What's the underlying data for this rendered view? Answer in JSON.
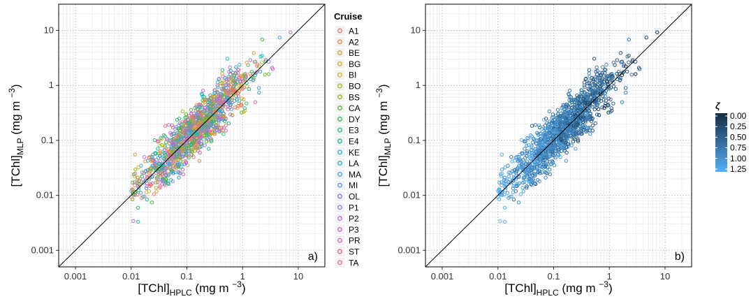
{
  "chart_data": [
    {
      "type": "scatter",
      "panel_label": "a)",
      "xlabel": {
        "main": "[TChl]",
        "sub": "HPLC",
        "unit": "(mg m",
        "sup": "−3",
        "close": ")"
      },
      "ylabel": {
        "main": "[TChl]",
        "sub": "MLP",
        "unit": "(mg m",
        "sup": "−3",
        "close": ")"
      },
      "scale": "log10",
      "xlim": [
        0.0005,
        30
      ],
      "ylim": [
        0.0005,
        30
      ],
      "ticks": [
        0.001,
        0.01,
        0.1,
        1,
        10
      ],
      "tick_labels": [
        "0.001",
        "0.01",
        "0.1",
        "1",
        "10"
      ],
      "grid": true,
      "reference_line": "1:1",
      "legend": {
        "title": "Cruise",
        "placement": "right",
        "entries": [
          "A1",
          "A2",
          "BE",
          "BG",
          "BI",
          "BO",
          "BS",
          "CA",
          "DY",
          "E3",
          "E4",
          "KE",
          "LA",
          "MA",
          "MI",
          "OL",
          "P1",
          "P2",
          "P3",
          "PR",
          "ST",
          "TA"
        ],
        "colors": [
          "#F8766D",
          "#F0844A",
          "#E99A3C",
          "#DCA629",
          "#C9B41A",
          "#AAB91A",
          "#7FB81E",
          "#4FB72C",
          "#2DB84F",
          "#20BA76",
          "#1DBB9B",
          "#1FB7BE",
          "#27AEDB",
          "#3FA0EC",
          "#5C8EF2",
          "#7B7CF2",
          "#977AEE",
          "#B06EE4",
          "#C965D5",
          "#DC5FBF",
          "#EA5EA4",
          "#F46A86"
        ]
      }
    },
    {
      "type": "scatter",
      "panel_label": "b)",
      "xlabel": {
        "main": "[TChl]",
        "sub": "HPLC",
        "unit": "(mg m",
        "sup": "−3",
        "close": ")"
      },
      "ylabel": {
        "main": "[TChl]",
        "sub": "MLP",
        "unit": "(mg m",
        "sup": "−3",
        "close": ")"
      },
      "scale": "log10",
      "xlim": [
        0.0005,
        30
      ],
      "ylim": [
        0.0005,
        30
      ],
      "ticks": [
        0.001,
        0.01,
        0.1,
        1,
        10
      ],
      "tick_labels": [
        "0.001",
        "0.01",
        "0.1",
        "1",
        "10"
      ],
      "grid": true,
      "reference_line": "1:1",
      "colorbar": {
        "title": "ζ",
        "placement": "right",
        "ticks": [
          "0.00",
          "0.25",
          "0.50",
          "0.75",
          "1.00",
          "1.25"
        ],
        "range": [
          0,
          1.25
        ],
        "colors": [
          "#132B43",
          "#56B1F7"
        ]
      }
    }
  ]
}
